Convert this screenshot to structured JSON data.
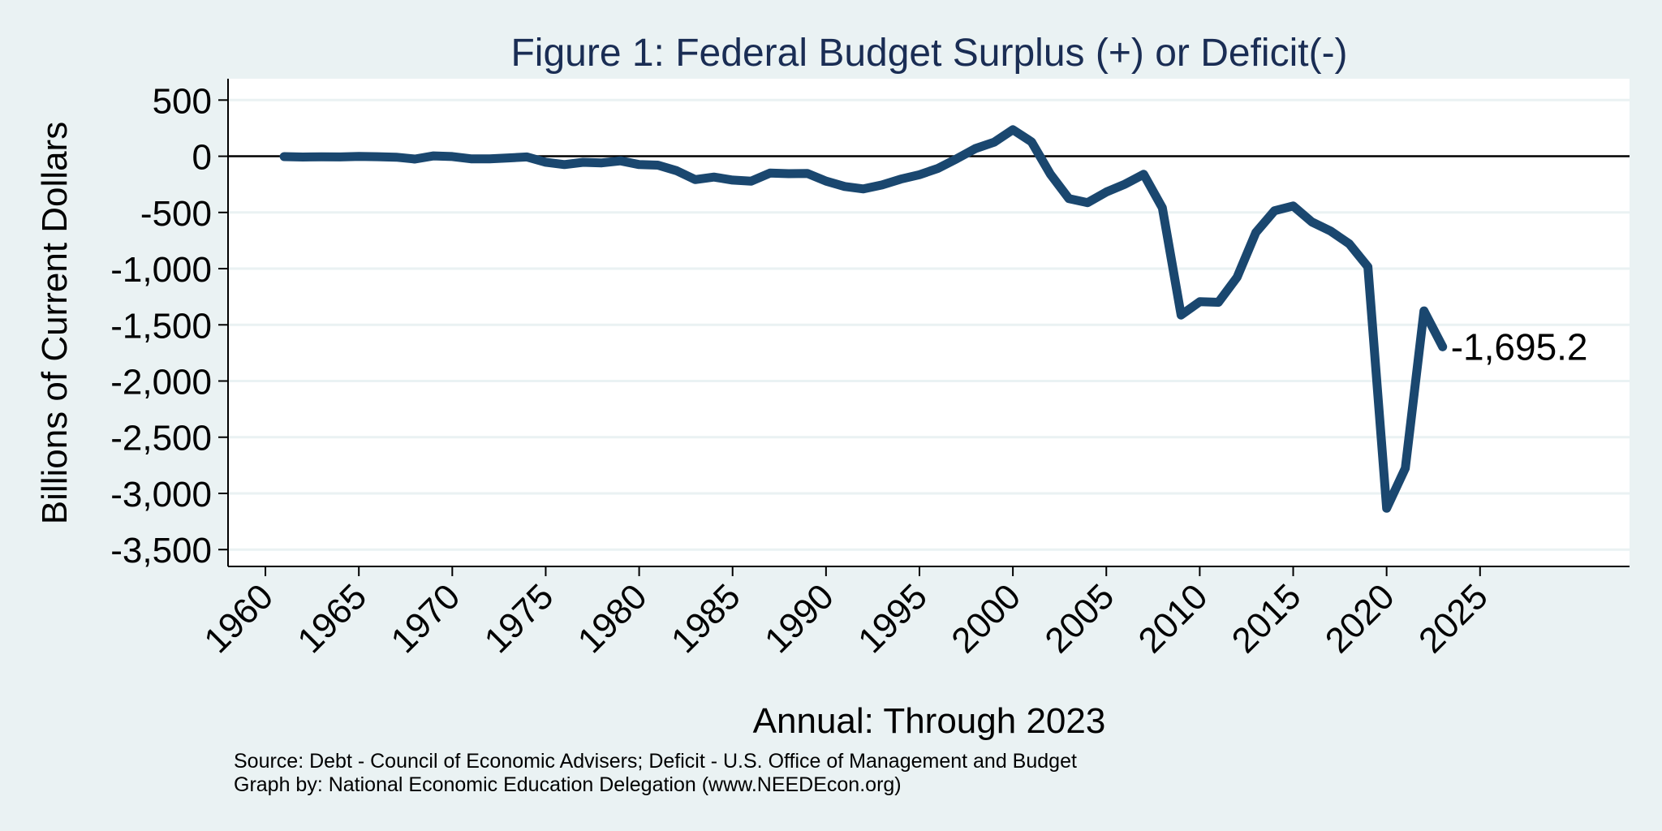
{
  "chart_data": {
    "type": "line",
    "title": "Figure 1: Federal Budget Surplus (+) or Deficit(-)",
    "xlabel": "Annual: Through 2023",
    "ylabel": "Billions of Current Dollars",
    "xlim": [
      1958,
      2033
    ],
    "ylim": [
      -3650,
      690
    ],
    "x_ticks": [
      1960,
      1965,
      1970,
      1975,
      1980,
      1985,
      1990,
      1995,
      2000,
      2005,
      2010,
      2015,
      2020,
      2025
    ],
    "x_tick_labels": [
      "1960",
      "1965",
      "1970",
      "1975",
      "1980",
      "1985",
      "1990",
      "1995",
      "2000",
      "2005",
      "2010",
      "2015",
      "2020",
      "2025"
    ],
    "y_ticks": [
      500,
      0,
      -500,
      -1000,
      -1500,
      -2000,
      -2500,
      -3000,
      -3500
    ],
    "y_tick_labels": [
      "500",
      "0",
      "-500",
      "-1,000",
      "-1,500",
      "-2,000",
      "-2,500",
      "-3,000",
      "-3,500"
    ],
    "grid": "horizontal",
    "reference_line": 0,
    "series": [
      {
        "color": "#1a476f",
        "x": [
          1961,
          1962,
          1963,
          1964,
          1965,
          1966,
          1967,
          1968,
          1969,
          1970,
          1971,
          1972,
          1973,
          1974,
          1975,
          1976,
          1977,
          1978,
          1979,
          1980,
          1981,
          1982,
          1983,
          1984,
          1985,
          1986,
          1987,
          1988,
          1989,
          1990,
          1991,
          1992,
          1993,
          1994,
          1995,
          1996,
          1997,
          1998,
          1999,
          2000,
          2001,
          2002,
          2003,
          2004,
          2005,
          2006,
          2007,
          2008,
          2009,
          2010,
          2011,
          2012,
          2013,
          2014,
          2015,
          2016,
          2017,
          2018,
          2019,
          2020,
          2021,
          2022,
          2023
        ],
        "y": [
          -3.3,
          -7.1,
          -4.8,
          -5.9,
          -1.4,
          -3.7,
          -8.6,
          -25.2,
          3.2,
          -2.8,
          -23.0,
          -23.4,
          -14.9,
          -6.1,
          -53.2,
          -73.7,
          -53.7,
          -59.2,
          -40.7,
          -73.8,
          -79.0,
          -128.0,
          -207.8,
          -185.4,
          -212.3,
          -221.2,
          -149.7,
          -155.2,
          -152.6,
          -221.0,
          -269.2,
          -290.3,
          -255.1,
          -203.2,
          -164.0,
          -107.4,
          -21.9,
          69.3,
          125.6,
          236.2,
          128.2,
          -157.8,
          -377.6,
          -412.7,
          -318.3,
          -248.2,
          -160.7,
          -458.6,
          -1412.7,
          -1294.4,
          -1299.6,
          -1076.6,
          -679.5,
          -484.6,
          -442.0,
          -584.7,
          -665.4,
          -779.1,
          -983.6,
          -3132.5,
          -2775.3,
          -1375.9,
          -1695.2
        ]
      }
    ],
    "annotations": [
      {
        "x": 2023,
        "y": -1695.2,
        "text": "-1,695.2"
      }
    ]
  },
  "notes": [
    "Source: Debt - Council of Economic Advisers; Deficit - U.S. Office of Management and Budget",
    "Graph by: National Economic Education Delegation (www.NEEDEcon.org)"
  ],
  "colors": {
    "background": "#eaf2f3",
    "plot_area": "#ffffff",
    "line": "#1a476f",
    "gridline": "#eaf2f3",
    "title": "#1a2d54"
  }
}
